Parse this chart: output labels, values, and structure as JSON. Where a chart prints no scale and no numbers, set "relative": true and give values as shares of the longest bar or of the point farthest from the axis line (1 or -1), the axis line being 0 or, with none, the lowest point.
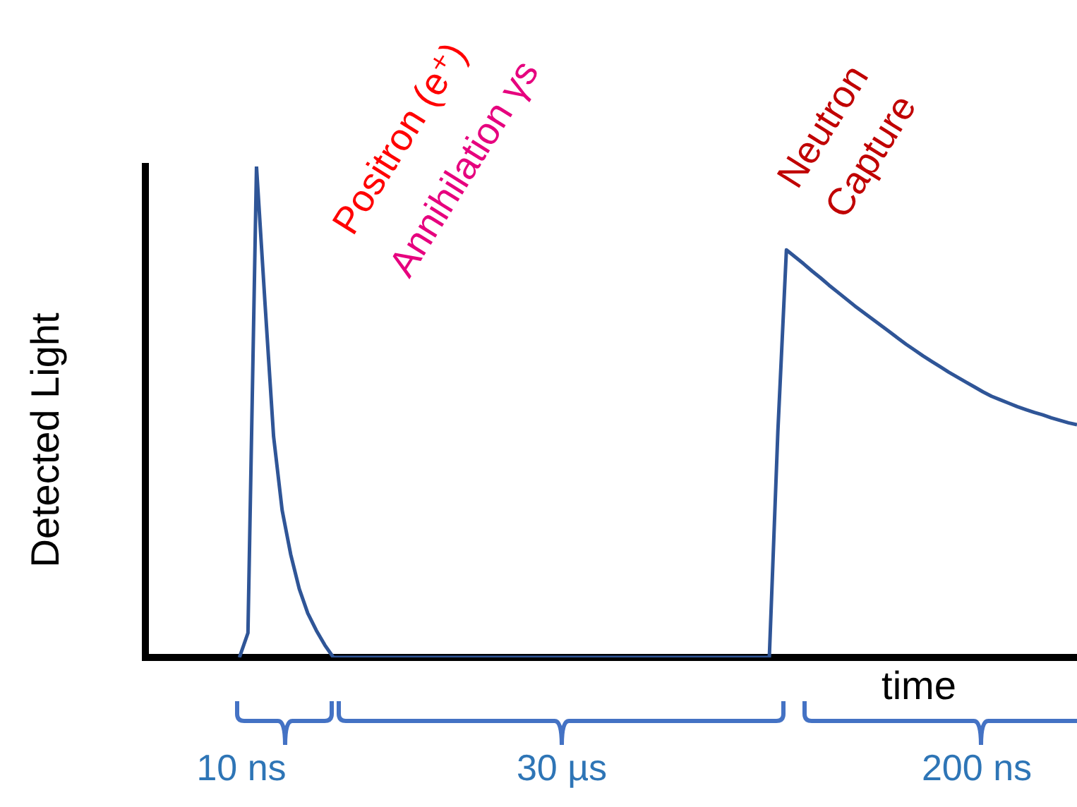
{
  "chart_data": {
    "type": "line",
    "relative": true,
    "xlabel": "time",
    "ylabel": "Detected Light",
    "categories": [
      null,
      null,
      null,
      null,
      null,
      null,
      null,
      null,
      null,
      null,
      null,
      null,
      null,
      null,
      null,
      null,
      null,
      null,
      null,
      null,
      null,
      null,
      null,
      null,
      null,
      null,
      null,
      null,
      null,
      null,
      null,
      null,
      null,
      null,
      null,
      null,
      null,
      null,
      null,
      null,
      null,
      null,
      null,
      null,
      null,
      null,
      null,
      null,
      null,
      null,
      null,
      null,
      null,
      null,
      null,
      null,
      null,
      null,
      null,
      null,
      null,
      null,
      null,
      null,
      null,
      null,
      null,
      null,
      null,
      null,
      null,
      null,
      null,
      null,
      null,
      null,
      null,
      null,
      null,
      null,
      null,
      null,
      null,
      null,
      null,
      null,
      null,
      null,
      null,
      null,
      null,
      null,
      null,
      null,
      null,
      null,
      null,
      null,
      null,
      null,
      null,
      null,
      null,
      null,
      null,
      null,
      null,
      null,
      null,
      null
    ],
    "series": [
      {
        "color": "#2f5597",
        "values": [
          null,
          null,
          null,
          null,
          null,
          null,
          null,
          null,
          null,
          null,
          null,
          0,
          0.05,
          1,
          0.72,
          0.45,
          0.3,
          0.21,
          0.14,
          0.09,
          0.055,
          0.025,
          0,
          0,
          0,
          0,
          0,
          0,
          0,
          0,
          0,
          0,
          0,
          0,
          0,
          0,
          0,
          0,
          0,
          0,
          0,
          0,
          0,
          0,
          0,
          0,
          0,
          0,
          0,
          0,
          0,
          0,
          0,
          0,
          0,
          0,
          0,
          0,
          0,
          0,
          0,
          0,
          0,
          0,
          0,
          0,
          0,
          0,
          0,
          0,
          0,
          0,
          0,
          0,
          0.46,
          0.83,
          0.816,
          0.802,
          0.787,
          0.773,
          0.758,
          0.744,
          0.73,
          0.716,
          0.703,
          0.69,
          0.677,
          0.664,
          0.651,
          0.638,
          0.626,
          0.614,
          0.603,
          0.592,
          0.581,
          0.571,
          0.561,
          0.551,
          0.541,
          0.532,
          0.525,
          0.518,
          0.511,
          0.505,
          0.499,
          0.494,
          0.488,
          0.483,
          0.478,
          0.474
        ]
      }
    ],
    "annotations": [
      "Positron (e⁺)",
      "Annihilation γs",
      "Neutron Capture",
      "10 ns",
      "30 µs",
      "200 ns"
    ],
    "grid": false,
    "legend": false,
    "marker": "none",
    "line_style": "solid"
  }
}
